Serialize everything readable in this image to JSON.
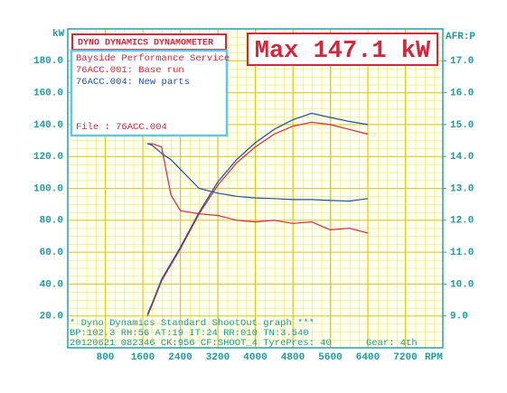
{
  "chart_data": {
    "type": "line",
    "title": "DYNO DYNAMICS DYNAMOMETER",
    "subtitle": "Bayside Performance Service",
    "annotation": "Max 147.1 kW",
    "file_label": "File    : 76ACC.004",
    "y_label": "kW",
    "y2_label": "AFR:P",
    "x_label": "RPM",
    "footer": [
      "* Dyno Dynamics Standard ShootOut graph ***",
      "BP:102.3 RH:56 AT:19 IT:24  RR:010 TN:3.540",
      "20120621 082346 CK:956 CF:SHOOT_4  TyrePres: 40"
    ],
    "gear": "Gear: 4th",
    "x": [
      1700,
      1800,
      2000,
      2200,
      2400,
      2800,
      3200,
      3600,
      4000,
      4400,
      4800,
      5200,
      5600,
      6000,
      6400
    ],
    "series": [
      {
        "name": "76ACC.001: Base run",
        "color": "#d0283c",
        "values": [
          20,
          27,
          42,
          52,
          62,
          84,
          102,
          116,
          126,
          134,
          139,
          141.5,
          140,
          137,
          134
        ]
      },
      {
        "name": "76ACC.004: New parts",
        "color": "#1f4f9f",
        "values": [
          21,
          28,
          43,
          53,
          63,
          85,
          104,
          118,
          128.6,
          137,
          143,
          147.1,
          144.5,
          142,
          140
        ]
      },
      {
        "name": "76ACC.001: Base run",
        "color": "#d0283c",
        "axis": "y2",
        "values": [
          14.4,
          14.4,
          14.3,
          12.8,
          12.3,
          12.2,
          12.15,
          12.0,
          11.95,
          12.0,
          11.9,
          11.95,
          11.7,
          11.75,
          11.6
        ]
      },
      {
        "name": "76ACC.004: New parts",
        "color": "#1f4f9f",
        "axis": "y2",
        "values": [
          14.4,
          14.35,
          14.1,
          13.9,
          13.6,
          13.0,
          12.85,
          12.75,
          12.7,
          12.68,
          12.65,
          12.65,
          12.62,
          12.6,
          12.68
        ]
      }
    ],
    "xlim": [
      0,
      8000
    ],
    "xticks": [
      800,
      1600,
      2400,
      3200,
      4000,
      4800,
      5600,
      6400,
      7200
    ],
    "ylim": [
      0,
      200
    ],
    "yticks": [
      {
        "value": 20,
        "label": "20.0"
      },
      {
        "value": 40,
        "label": "40.0"
      },
      {
        "value": 60,
        "label": "60.0"
      },
      {
        "value": 80,
        "label": "80.0"
      },
      {
        "value": 100,
        "label": "100.0"
      },
      {
        "value": 120,
        "label": "120.0"
      },
      {
        "value": 140,
        "label": "140.0"
      },
      {
        "value": 160,
        "label": "160.0"
      },
      {
        "value": 180,
        "label": "180.0"
      }
    ],
    "y2lim": [
      8,
      18
    ],
    "y2ticks": [
      {
        "value": 9,
        "label": "9.0"
      },
      {
        "value": 10,
        "label": "10.0"
      },
      {
        "value": 11,
        "label": "11.0"
      },
      {
        "value": 12,
        "label": "12.0"
      },
      {
        "value": 13,
        "label": "13.0"
      },
      {
        "value": 14,
        "label": "14.0"
      },
      {
        "value": 15,
        "label": "15.0"
      },
      {
        "value": 16,
        "label": "16.0"
      },
      {
        "value": 17,
        "label": "17.0"
      }
    ],
    "grid": true
  }
}
